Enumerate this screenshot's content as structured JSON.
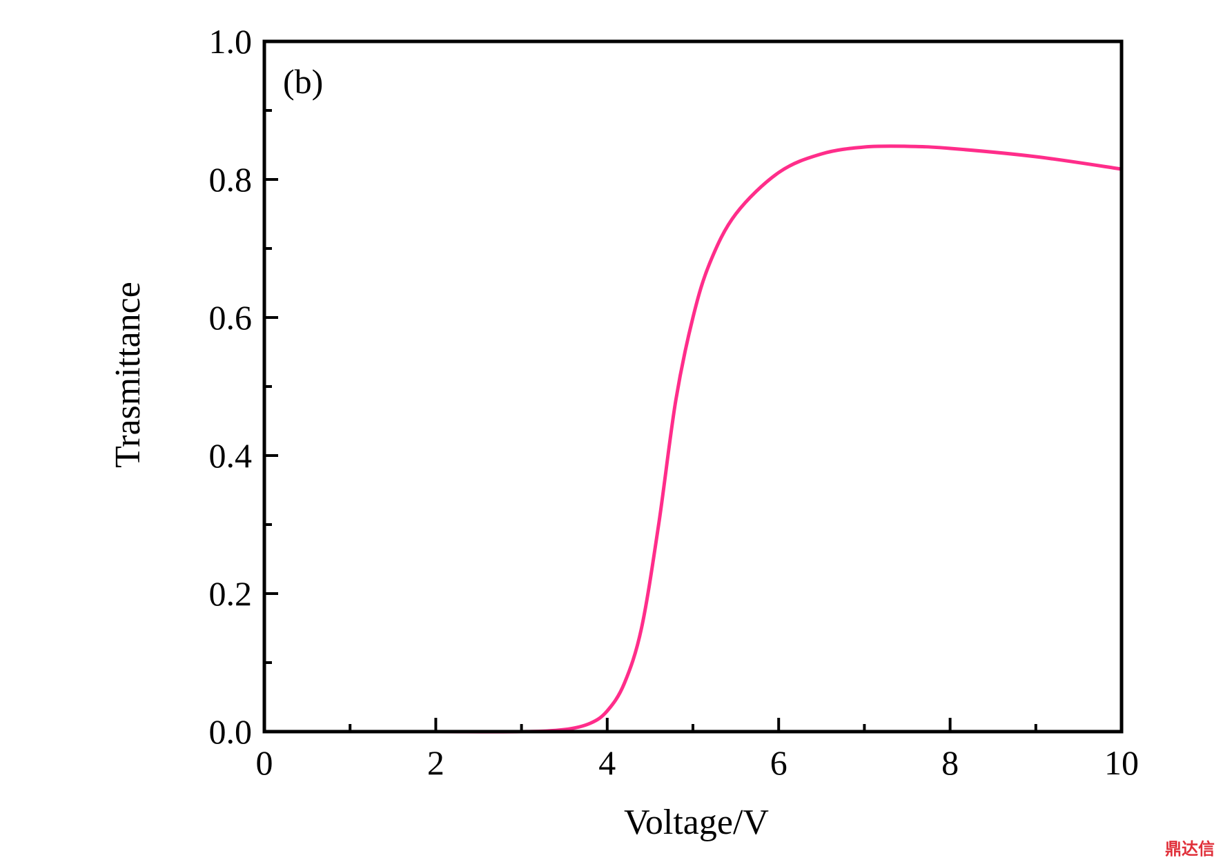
{
  "chart_data": {
    "type": "line",
    "panel_label": "(b)",
    "xlabel": "Voltage/V",
    "ylabel": "Trasmittance",
    "xlim": [
      0,
      10
    ],
    "ylim": [
      0,
      1.0
    ],
    "x_ticks": [
      "0",
      "2",
      "4",
      "6",
      "8",
      "10"
    ],
    "x_tick_values": [
      0,
      2,
      4,
      6,
      8,
      10
    ],
    "y_ticks": [
      "0.0",
      "0.2",
      "0.4",
      "0.6",
      "0.8",
      "1.0"
    ],
    "y_tick_values": [
      0,
      0.2,
      0.4,
      0.6,
      0.8,
      1.0
    ],
    "grid": false,
    "series": [
      {
        "color": "#ff2d8a",
        "x": [
          0.2,
          1,
          2,
          3,
          3.5,
          3.8,
          4.0,
          4.2,
          4.4,
          4.6,
          4.8,
          5.0,
          5.2,
          5.5,
          6.0,
          6.5,
          7.0,
          7.5,
          8.0,
          9.0,
          10.0
        ],
        "y": [
          0,
          0,
          0,
          0,
          0.003,
          0.012,
          0.03,
          0.07,
          0.15,
          0.3,
          0.48,
          0.6,
          0.68,
          0.75,
          0.81,
          0.837,
          0.847,
          0.848,
          0.845,
          0.833,
          0.815
        ]
      }
    ]
  },
  "watermark": {
    "text": "鼎达信"
  }
}
